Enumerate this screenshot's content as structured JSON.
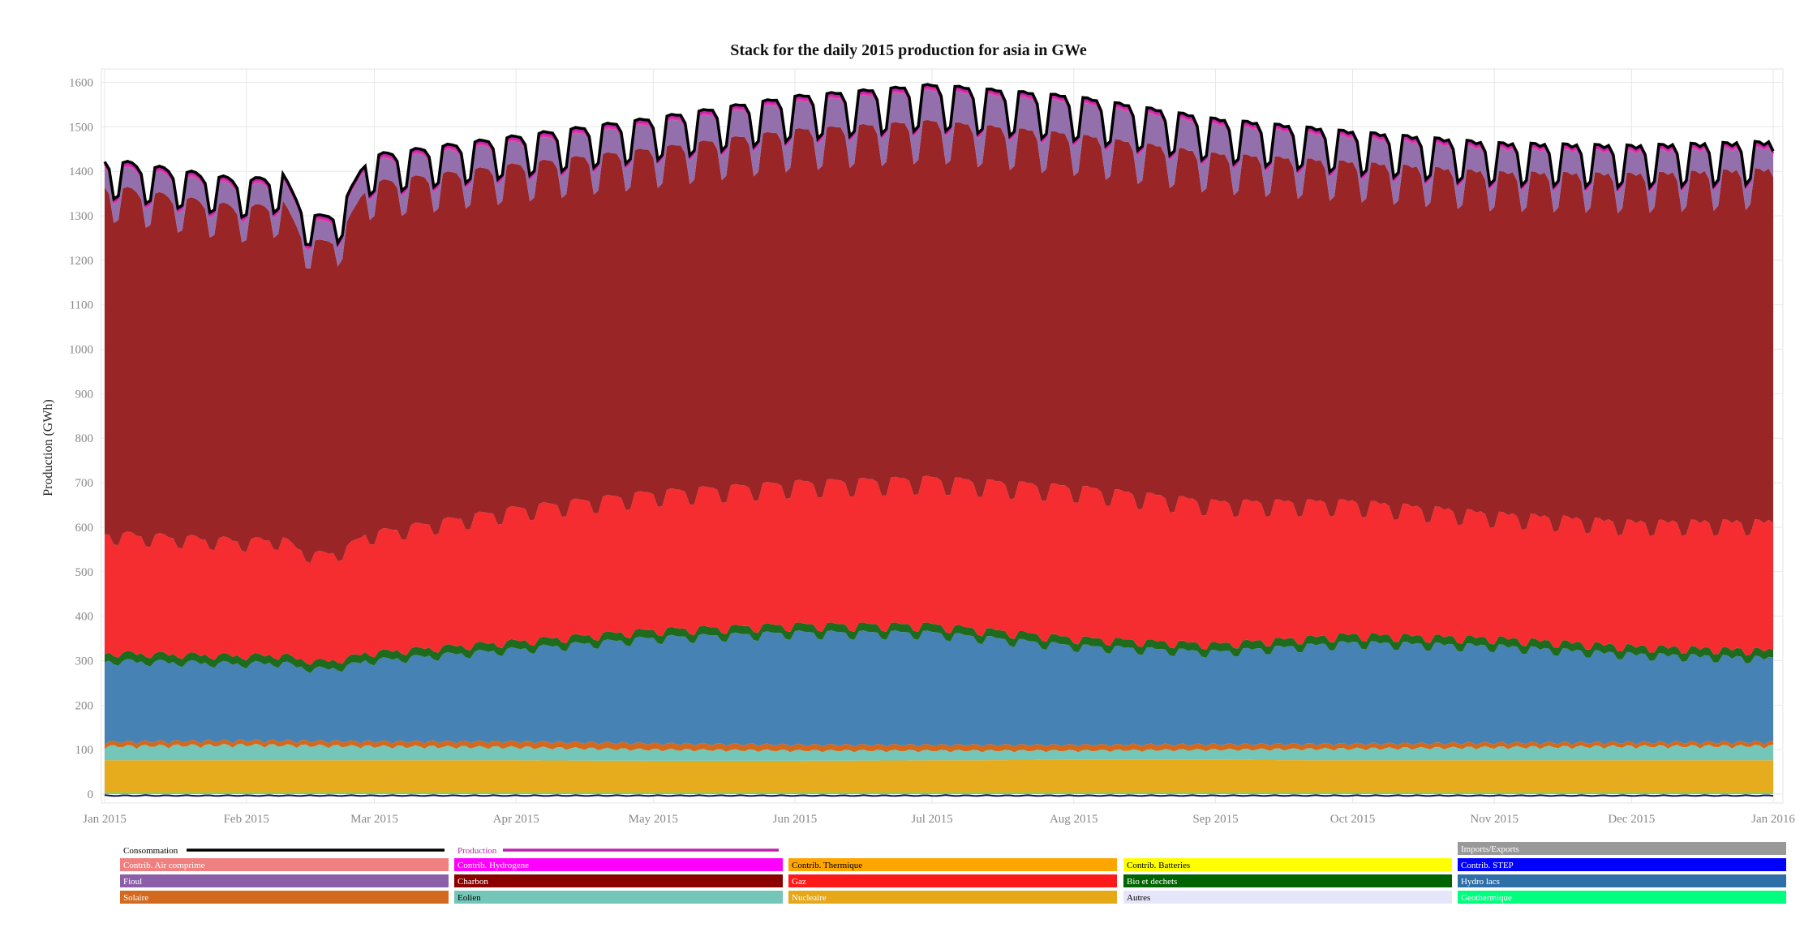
{
  "chart_data": {
    "type": "area",
    "title": "Stack for the daily 2015 production for asia in GWe",
    "xlabel": "",
    "ylabel": "Production (GWh)",
    "ylim": [
      -20,
      1630
    ],
    "yticks": [
      0,
      100,
      200,
      300,
      400,
      500,
      600,
      700,
      800,
      900,
      1000,
      1100,
      1200,
      1300,
      1400,
      1500,
      1600
    ],
    "xtick_labels": [
      "Jan 2015",
      "Feb 2015",
      "Mar 2015",
      "Apr 2015",
      "May 2015",
      "Jun 2015",
      "Jul 2015",
      "Aug 2015",
      "Sep 2015",
      "Oct 2015",
      "Nov 2015",
      "Dec 2015",
      "Jan 2016"
    ],
    "grid": true,
    "legend_position": "bottom",
    "x_anchor_days": [
      0,
      31,
      59,
      90,
      120,
      151,
      181,
      212,
      243,
      273,
      304,
      334,
      365
    ],
    "stack_anchors": {
      "Geothermique": [
        3,
        3,
        3,
        3,
        3,
        3,
        3,
        3,
        3,
        3,
        3,
        3,
        3
      ],
      "Nucleaire": [
        73,
        73,
        73,
        73,
        72,
        72,
        73,
        74,
        74,
        73,
        73,
        73,
        73
      ],
      "Autres": [
        0,
        0,
        0,
        0,
        0,
        0,
        0,
        0,
        0,
        0,
        0,
        0,
        0
      ],
      "Eolien": [
        30,
        33,
        30,
        28,
        24,
        22,
        21,
        20,
        22,
        25,
        28,
        30,
        31
      ],
      "Solaire": [
        10,
        10,
        11,
        13,
        14,
        13,
        13,
        13,
        12,
        11,
        10,
        9,
        9
      ],
      "Hydro lacs": [
        185,
        175,
        185,
        210,
        240,
        255,
        255,
        225,
        210,
        230,
        220,
        200,
        190
      ],
      "Bio et dechets": [
        18,
        18,
        18,
        18,
        18,
        18,
        18,
        18,
        18,
        18,
        18,
        18,
        18
      ],
      "Gaz": [
        270,
        260,
        270,
        300,
        310,
        320,
        330,
        340,
        320,
        300,
        280,
        280,
        290
      ],
      "Charbon": [
        780,
        745,
        785,
        770,
        770,
        790,
        800,
        790,
        780,
        760,
        765,
        780,
        790
      ],
      "Fioul": [
        45,
        48,
        48,
        50,
        55,
        62,
        68,
        72,
        65,
        55,
        52,
        50,
        48
      ],
      "Contrib. Hydrogene": [
        7,
        7,
        7,
        7,
        7,
        7,
        7,
        7,
        7,
        7,
        7,
        7,
        7
      ]
    },
    "weekly_dip_fraction": 0.035,
    "consumption_offset": 5,
    "series": [
      {
        "name": "Geothermique",
        "color": "#00ff7f"
      },
      {
        "name": "Nucleaire",
        "color": "#e6ac1e"
      },
      {
        "name": "Autres",
        "color": "#e6e6fa"
      },
      {
        "name": "Eolien",
        "color": "#74c7b8"
      },
      {
        "name": "Solaire",
        "color": "#d2691e"
      },
      {
        "name": "Hydro lacs",
        "color": "#4682b4"
      },
      {
        "name": "Bio et dechets",
        "color": "#1e6b1e"
      },
      {
        "name": "Gaz",
        "color": "#f52d30"
      },
      {
        "name": "Charbon",
        "color": "#9a2527"
      },
      {
        "name": "Fioul",
        "color": "#9370ab"
      },
      {
        "name": "Contrib. Hydrogene",
        "color": "#e0379e"
      }
    ],
    "lines": [
      {
        "name": "Consommation",
        "color": "#000000"
      },
      {
        "name": "Production",
        "color": "#c020b0"
      }
    ]
  },
  "legend": {
    "lines": [
      {
        "label": "Consommation",
        "color": "#000000"
      },
      {
        "label": "Production",
        "color": "#c020b0"
      }
    ],
    "rows": [
      [
        null,
        null,
        null,
        null,
        {
          "label": "Imports/Exports",
          "color": "#999999",
          "text": "#ffffff"
        }
      ],
      [
        {
          "label": "Contrib. Air comprime",
          "color": "#f08080",
          "text": "#ffffff"
        },
        {
          "label": "Contrib. Hydrogene",
          "color": "#ff00ff",
          "text": "#ffffff"
        },
        {
          "label": "Contrib. Thermique",
          "color": "#ffa500",
          "text": "#000000"
        },
        {
          "label": "Contrib. Batteries",
          "color": "#ffff00",
          "text": "#000000"
        },
        {
          "label": "Contrib. STEP",
          "color": "#0000ff",
          "text": "#ffffff"
        }
      ],
      [
        {
          "label": "Fioul",
          "color": "#8b5fa8",
          "text": "#ffffff"
        },
        {
          "label": "Charbon",
          "color": "#8b0000",
          "text": "#ffffff"
        },
        {
          "label": "Gaz",
          "color": "#ff1a1a",
          "text": "#ffffff"
        },
        {
          "label": "Bio et dechets",
          "color": "#006400",
          "text": "#ffffff"
        },
        {
          "label": "Hydro lacs",
          "color": "#2e6fa8",
          "text": "#ffffff"
        }
      ],
      [
        {
          "label": "Solaire",
          "color": "#d2691e",
          "text": "#ffffff"
        },
        {
          "label": "Eolien",
          "color": "#74c7b8",
          "text": "#000000"
        },
        {
          "label": "Nucleaire",
          "color": "#e6a817",
          "text": "#ffffff"
        },
        {
          "label": "Autres",
          "color": "#e6e6fa",
          "text": "#000000"
        },
        {
          "label": "Geothermique",
          "color": "#00ff7f",
          "text": "#ffffff"
        }
      ]
    ]
  }
}
